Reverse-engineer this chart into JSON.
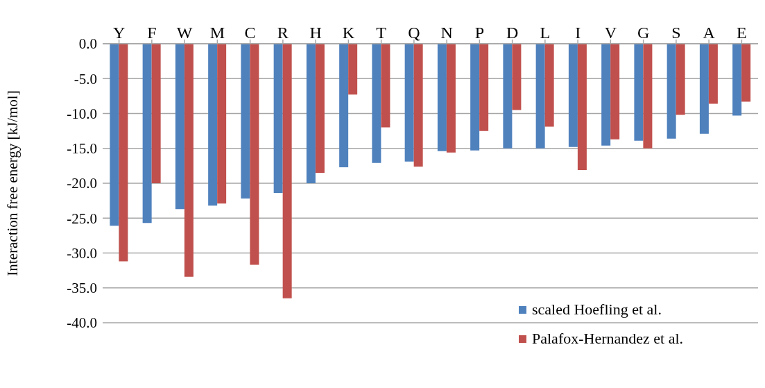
{
  "chart_data": {
    "type": "bar",
    "ylabel": "Interaction free energy [kJ/mol]",
    "categories": [
      "Y",
      "F",
      "W",
      "M",
      "C",
      "R",
      "H",
      "K",
      "T",
      "Q",
      "N",
      "P",
      "D",
      "L",
      "I",
      "V",
      "G",
      "S",
      "A",
      "E"
    ],
    "series": [
      {
        "name": "scaled Hoefling et al.",
        "color": "#4f81bd",
        "values": [
          -26.1,
          -25.7,
          -23.7,
          -23.2,
          -22.2,
          -21.4,
          -20.0,
          -17.7,
          -17.1,
          -16.9,
          -15.4,
          -15.3,
          -15.0,
          -15.0,
          -14.8,
          -14.6,
          -13.9,
          -13.6,
          -12.9,
          -10.3
        ]
      },
      {
        "name": "Palafox-Hernandez et al.",
        "color": "#c0504d",
        "values": [
          -31.2,
          -20.0,
          -33.4,
          -22.9,
          -31.7,
          -36.5,
          -18.5,
          -7.3,
          -12.0,
          -17.6,
          -15.6,
          -12.5,
          -9.5,
          -11.9,
          -18.1,
          -13.7,
          -15.0,
          -10.2,
          -8.6,
          -8.3
        ]
      }
    ],
    "ylim": [
      -40,
      0
    ],
    "yticks": [
      {
        "value": 0,
        "label": "0.0"
      },
      {
        "value": -5,
        "label": "-5.0"
      },
      {
        "value": -10,
        "label": "-10.0"
      },
      {
        "value": -15,
        "label": "-15.0"
      },
      {
        "value": -20,
        "label": "-20.0"
      },
      {
        "value": -25,
        "label": "-25.0"
      },
      {
        "value": -30,
        "label": "-30.0"
      },
      {
        "value": -35,
        "label": "-35.0"
      },
      {
        "value": -40,
        "label": "-40.0"
      }
    ],
    "grid": "y",
    "legend": "bottom right"
  }
}
